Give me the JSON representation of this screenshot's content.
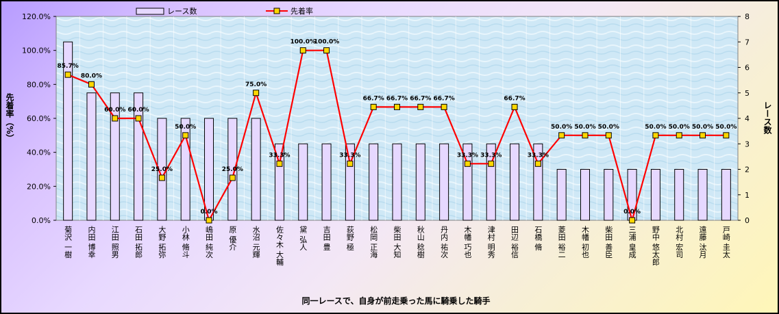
{
  "chart_data": {
    "type": "bar",
    "xlabel": "同一レースで、自身が前走乗った馬に騎乗した騎手",
    "categories": [
      "菊沢 一樹",
      "内田 博幸",
      "江田 照男",
      "石田 拓郎",
      "大野 拓弥",
      "小林 脩斗",
      "嶋田 純次",
      "原 優介",
      "水沼 元輝",
      "佐々木 大輔",
      "黛 弘人",
      "吉田 豊",
      "荻野 極",
      "松岡 正海",
      "柴田 大知",
      "秋山 稔樹",
      "丹内 祐次",
      "木幡 巧也",
      "津村 明秀",
      "田辺 裕信",
      "石橋 脩",
      "菱田 裕二",
      "木幡 初也",
      "柴田 善臣",
      "三浦 皇成",
      "野中 悠太郎",
      "北村 宏司",
      "遠藤 汰月",
      "戸崎 圭太"
    ],
    "series": [
      {
        "name": "レース数",
        "type": "bar",
        "axis": "right",
        "color": "#e6d8ff",
        "values": [
          7,
          5,
          5,
          5,
          4,
          4,
          4,
          4,
          4,
          3,
          3,
          3,
          3,
          3,
          3,
          3,
          3,
          3,
          3,
          3,
          3,
          2,
          2,
          2,
          2,
          2,
          2,
          2,
          2
        ]
      },
      {
        "name": "先着率",
        "type": "line",
        "axis": "left",
        "color": "#ff0000",
        "marker_color": "#ffd700",
        "values": [
          85.7,
          80.0,
          60.0,
          60.0,
          25.0,
          50.0,
          0.0,
          25.0,
          75.0,
          33.3,
          100.0,
          100.0,
          33.3,
          66.7,
          66.7,
          66.7,
          66.7,
          33.3,
          33.3,
          66.7,
          33.3,
          50.0,
          50.0,
          50.0,
          0.0,
          50.0,
          50.0,
          50.0,
          50.0
        ],
        "labels": [
          "85.7%",
          "80.0%",
          "60.0%",
          "60.0%",
          "25.0%",
          "50.0%",
          "0.0%",
          "25.0%",
          "75.0%",
          "33.3%",
          "100.0%",
          "100.0%",
          "33.3%",
          "66.7%",
          "66.7%",
          "66.7%",
          "66.7%",
          "33.3%",
          "33.3%",
          "66.7%",
          "33.3%",
          "50.0%",
          "50.0%",
          "50.0%",
          "0.0%",
          "50.0%",
          "50.0%",
          "50.0%",
          "50.0%"
        ]
      }
    ],
    "y_left": {
      "label": "先着率（%）",
      "min": 0,
      "max": 120,
      "ticks": [
        "0.0%",
        "20.0%",
        "40.0%",
        "60.0%",
        "80.0%",
        "100.0%",
        "120.0%"
      ]
    },
    "y_right": {
      "label": "レース数",
      "min": 0,
      "max": 8,
      "ticks": [
        "0",
        "1",
        "2",
        "3",
        "4",
        "5",
        "6",
        "7",
        "8"
      ]
    },
    "legend": {
      "placement": "top",
      "items": [
        "レース数",
        "先着率"
      ]
    },
    "grid": true
  }
}
